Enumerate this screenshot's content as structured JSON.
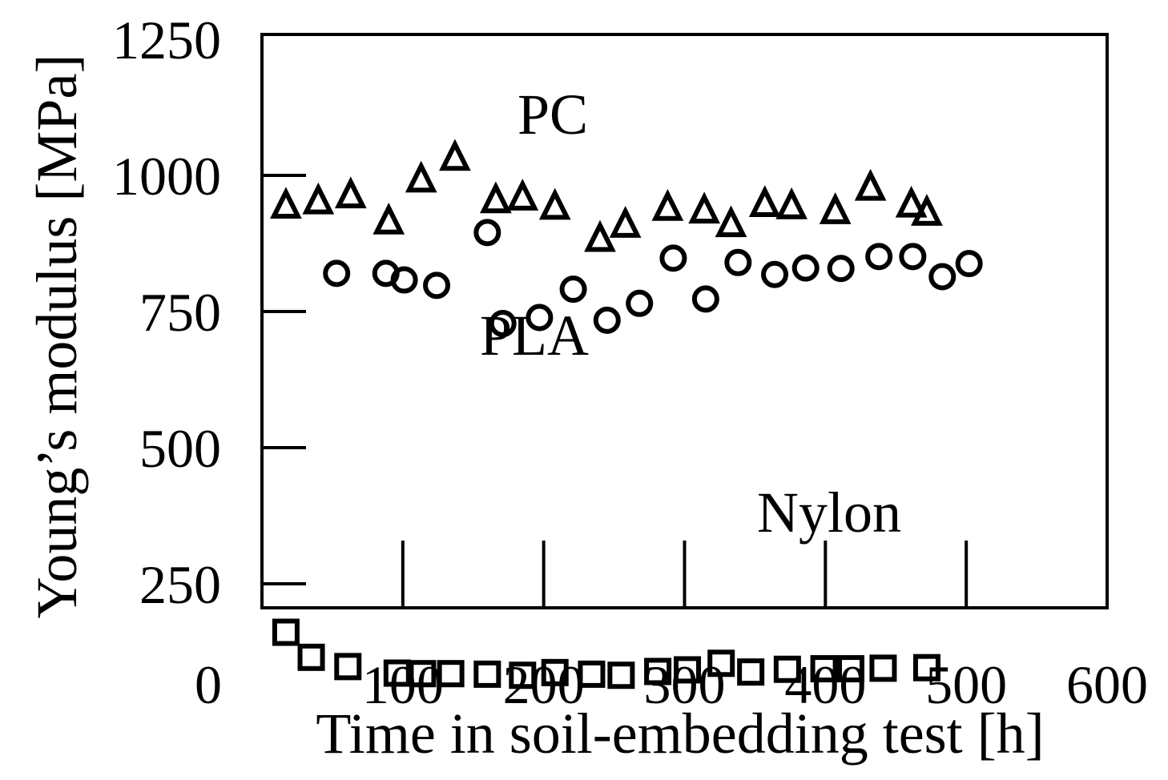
{
  "chart_data": {
    "type": "scatter",
    "xlabel": "Time in soil-embedding test [h]",
    "ylabel": "Young’s modulus [MPa]",
    "xlim": [
      0,
      600
    ],
    "ylim": [
      0,
      1250
    ],
    "xticks": [
      "0",
      "100",
      "200",
      "300",
      "400",
      "500",
      "600"
    ],
    "yticks": [
      "250",
      "500",
      "750",
      "1000",
      "1250"
    ],
    "grid": false,
    "series": [
      {
        "name": "PC",
        "marker": "triangle",
        "x": [
          17,
          40,
          63,
          90,
          113,
          137,
          166,
          185,
          208,
          240,
          258,
          288,
          314,
          333,
          357,
          376,
          407,
          432,
          461,
          472
        ],
        "y": [
          947,
          955,
          966,
          918,
          995,
          1035,
          957,
          962,
          945,
          886,
          912,
          943,
          938,
          913,
          950,
          946,
          937,
          980,
          949,
          934
        ]
      },
      {
        "name": "PLA",
        "marker": "circle",
        "x": [
          53,
          88,
          101,
          124,
          160,
          171,
          197,
          221,
          245,
          268,
          292,
          315,
          338,
          364,
          386,
          411,
          438,
          462,
          483,
          502
        ],
        "y": [
          820,
          820,
          808,
          798,
          895,
          728,
          739,
          791,
          734,
          765,
          848,
          773,
          840,
          818,
          830,
          829,
          851,
          851,
          814,
          838
        ]
      },
      {
        "name": "Nylon",
        "marker": "square",
        "x": [
          17,
          35,
          61,
          96,
          114,
          134,
          160,
          185,
          208,
          234,
          255,
          281,
          302,
          326,
          347,
          373,
          399,
          418,
          441,
          472
        ],
        "y": [
          161,
          115,
          98,
          86,
          85,
          85,
          84,
          82,
          87,
          84,
          82,
          89,
          92,
          104,
          88,
          93,
          94,
          94,
          95,
          96
        ]
      }
    ],
    "annotations": [
      "PC",
      "PLA",
      "Nylon"
    ]
  }
}
